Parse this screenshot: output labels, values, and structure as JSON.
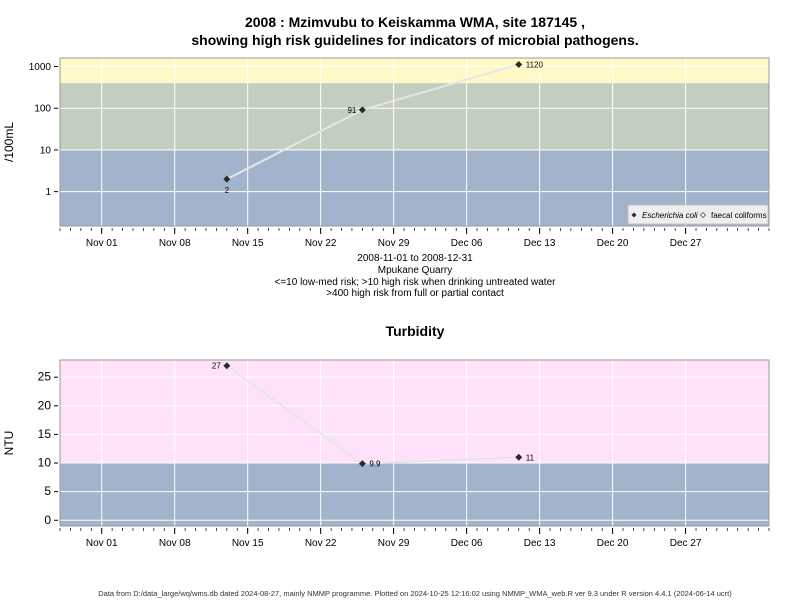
{
  "header": {
    "title_line1": "2008 : Mzimvubu to Keiskamma WMA, site 187145 ,",
    "title_line2": "showing high risk guidelines for indicators of microbial pathogens."
  },
  "subtitle": {
    "date_range": "2008-11-01 to 2008-12-31",
    "site_name": "Mpukane Quarry",
    "guideline_1": "<=10 low-med risk; >10 high risk when drinking untreated water",
    "guideline_2": ">400 high risk from full or partial contact"
  },
  "footer": {
    "text": "Data from D:/data_large/wq/wms.db dated 2024-08-27, mainly NMMP programme. Plotted on 2024-10-25 12:16:02 using NMMP_WMA_web.R ver 9.3 under R version 4.4.1 (2024-06-14 ucrt)"
  },
  "colors": {
    "low_band": "#a2b4cc",
    "mid_band": "#c4cec0",
    "high_band": "#fff9c8",
    "turbidity_high_band": "#ffe2fa",
    "line": "#e6e6e6",
    "marker": "#2a2a2a"
  },
  "chart_data": [
    {
      "type": "line",
      "title": "",
      "ylabel": "/100mL",
      "y_scale": "log",
      "xlim": [
        "2008-10-28",
        "2009-01-04"
      ],
      "ylim": [
        0.15,
        1600
      ],
      "x_ticks": [
        "Nov 01",
        "Nov 08",
        "Nov 15",
        "Nov 22",
        "Nov 29",
        "Dec 06",
        "Dec 13",
        "Dec 20",
        "Dec 27"
      ],
      "x_tick_dates": [
        "2008-11-01",
        "2008-11-08",
        "2008-11-15",
        "2008-11-22",
        "2008-11-29",
        "2008-12-06",
        "2008-12-13",
        "2008-12-20",
        "2008-12-27"
      ],
      "y_ticks": [
        "1",
        "10",
        "100",
        "1000"
      ],
      "y_tick_values": [
        1,
        10,
        100,
        1000
      ],
      "bands": [
        {
          "from": 0.15,
          "to": 10,
          "color": "#a2b4cc"
        },
        {
          "from": 10,
          "to": 400,
          "color": "#c4cec0"
        },
        {
          "from": 400,
          "to": 1600,
          "color": "#fff9c8"
        }
      ],
      "grid": true,
      "legend_position": "bottom-right",
      "series": [
        {
          "name": "Escherichia coli",
          "marker": "diamond",
          "points": [
            {
              "x": "2008-11-13",
              "y": 2,
              "label": "2",
              "label_pos": "below"
            },
            {
              "x": "2008-11-26",
              "y": 91,
              "label": "91",
              "label_pos": "left"
            },
            {
              "x": "2008-12-11",
              "y": 1120,
              "label": "1120",
              "label_pos": "right"
            }
          ]
        },
        {
          "name": "faecal coliforms",
          "marker": "open-diamond",
          "points": []
        }
      ]
    },
    {
      "type": "line",
      "title": "Turbidity",
      "ylabel": "NTU",
      "y_scale": "linear",
      "xlim": [
        "2008-10-28",
        "2009-01-04"
      ],
      "ylim": [
        -1,
        28
      ],
      "x_ticks": [
        "Nov 01",
        "Nov 08",
        "Nov 15",
        "Nov 22",
        "Nov 29",
        "Dec 06",
        "Dec 13",
        "Dec 20",
        "Dec 27"
      ],
      "x_tick_dates": [
        "2008-11-01",
        "2008-11-08",
        "2008-11-15",
        "2008-11-22",
        "2008-11-29",
        "2008-12-06",
        "2008-12-13",
        "2008-12-20",
        "2008-12-27"
      ],
      "y_ticks": [
        "0",
        "5",
        "10",
        "15",
        "20",
        "25"
      ],
      "y_tick_values": [
        0,
        5,
        10,
        15,
        20,
        25
      ],
      "bands": [
        {
          "from": -1,
          "to": 10,
          "color": "#a2b4cc"
        },
        {
          "from": 10,
          "to": 28,
          "color": "#ffe2fa"
        }
      ],
      "grid": true,
      "series": [
        {
          "name": "Turbidity",
          "marker": "diamond",
          "points": [
            {
              "x": "2008-11-13",
              "y": 27,
              "label": "27",
              "label_pos": "left"
            },
            {
              "x": "2008-11-26",
              "y": 9.9,
              "label": "9.9",
              "label_pos": "right"
            },
            {
              "x": "2008-12-11",
              "y": 11,
              "label": "11",
              "label_pos": "right"
            }
          ]
        }
      ]
    }
  ]
}
